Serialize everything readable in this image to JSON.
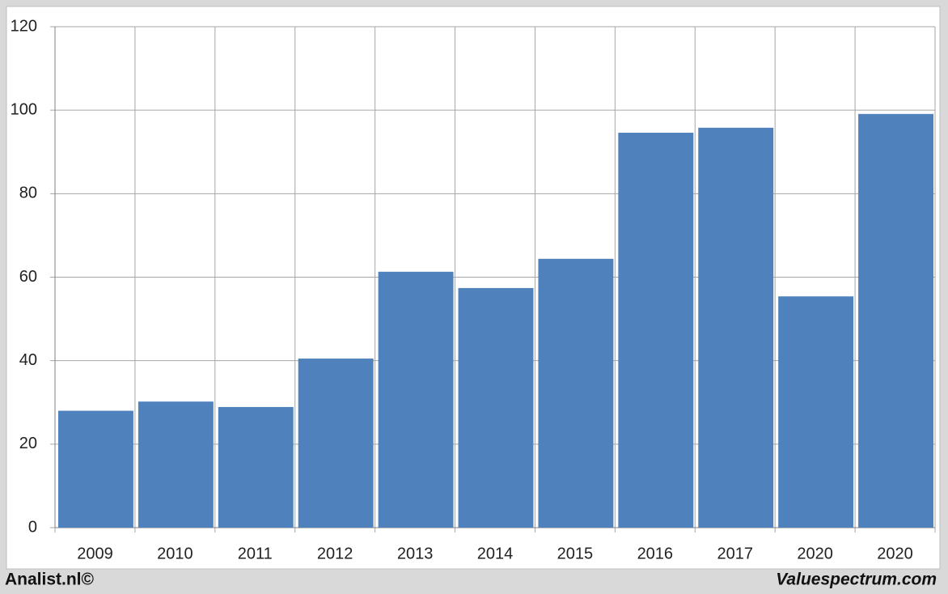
{
  "chart_data": {
    "type": "bar",
    "categories": [
      "2009",
      "2010",
      "2011",
      "2012",
      "2013",
      "2014",
      "2015",
      "2016",
      "2017",
      "2020",
      "2020"
    ],
    "values": [
      28,
      30.2,
      28.9,
      40.5,
      61.3,
      57.4,
      64.4,
      94.6,
      95.8,
      55.4,
      99.1
    ],
    "color": "#4f81bd",
    "ylim": [
      0,
      120
    ],
    "yticks": [
      0,
      20,
      40,
      60,
      80,
      100,
      120
    ],
    "grid": true,
    "footer_left": "Analist.nl©",
    "footer_right": "Valuespectrum.com"
  }
}
